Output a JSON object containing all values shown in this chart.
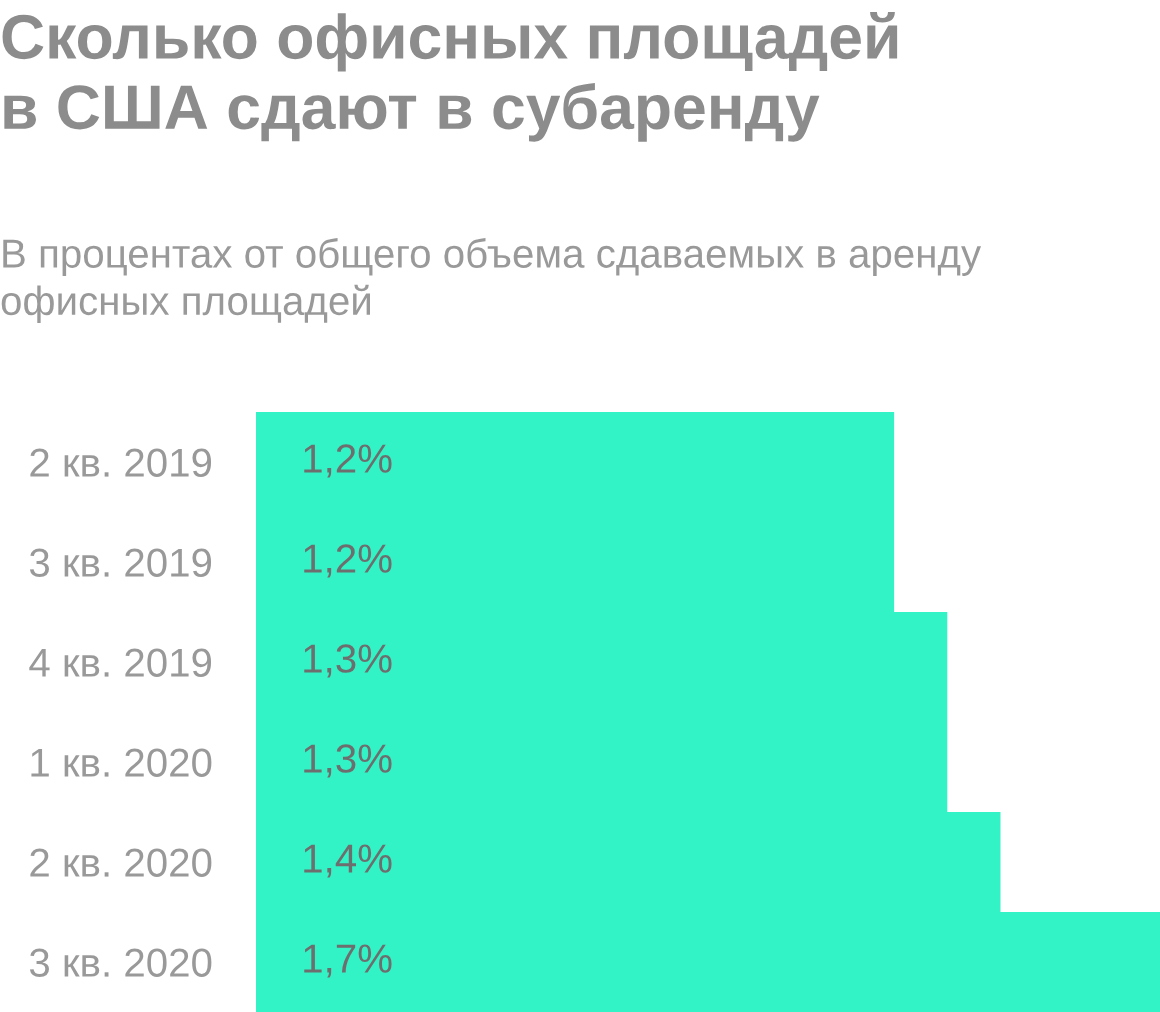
{
  "chart_data": {
    "type": "bar",
    "orientation": "horizontal",
    "title": "Сколько офисных площадей\nв США сдают в субаренду",
    "subtitle": "В процентах от общего объема сдаваемых в аренду\nофисных площадей",
    "categories": [
      "2 кв. 2019",
      "3 кв. 2019",
      "4 кв. 2019",
      "1 кв. 2020",
      "2 кв. 2020",
      "3 кв. 2020"
    ],
    "values": [
      1.2,
      1.2,
      1.3,
      1.3,
      1.4,
      1.7
    ],
    "value_labels": [
      "1,2%",
      "1,2%",
      "1,3%",
      "1,3%",
      "1,4%",
      "1,7%"
    ],
    "color": "#32f3c5",
    "grid": false,
    "legend": false
  }
}
